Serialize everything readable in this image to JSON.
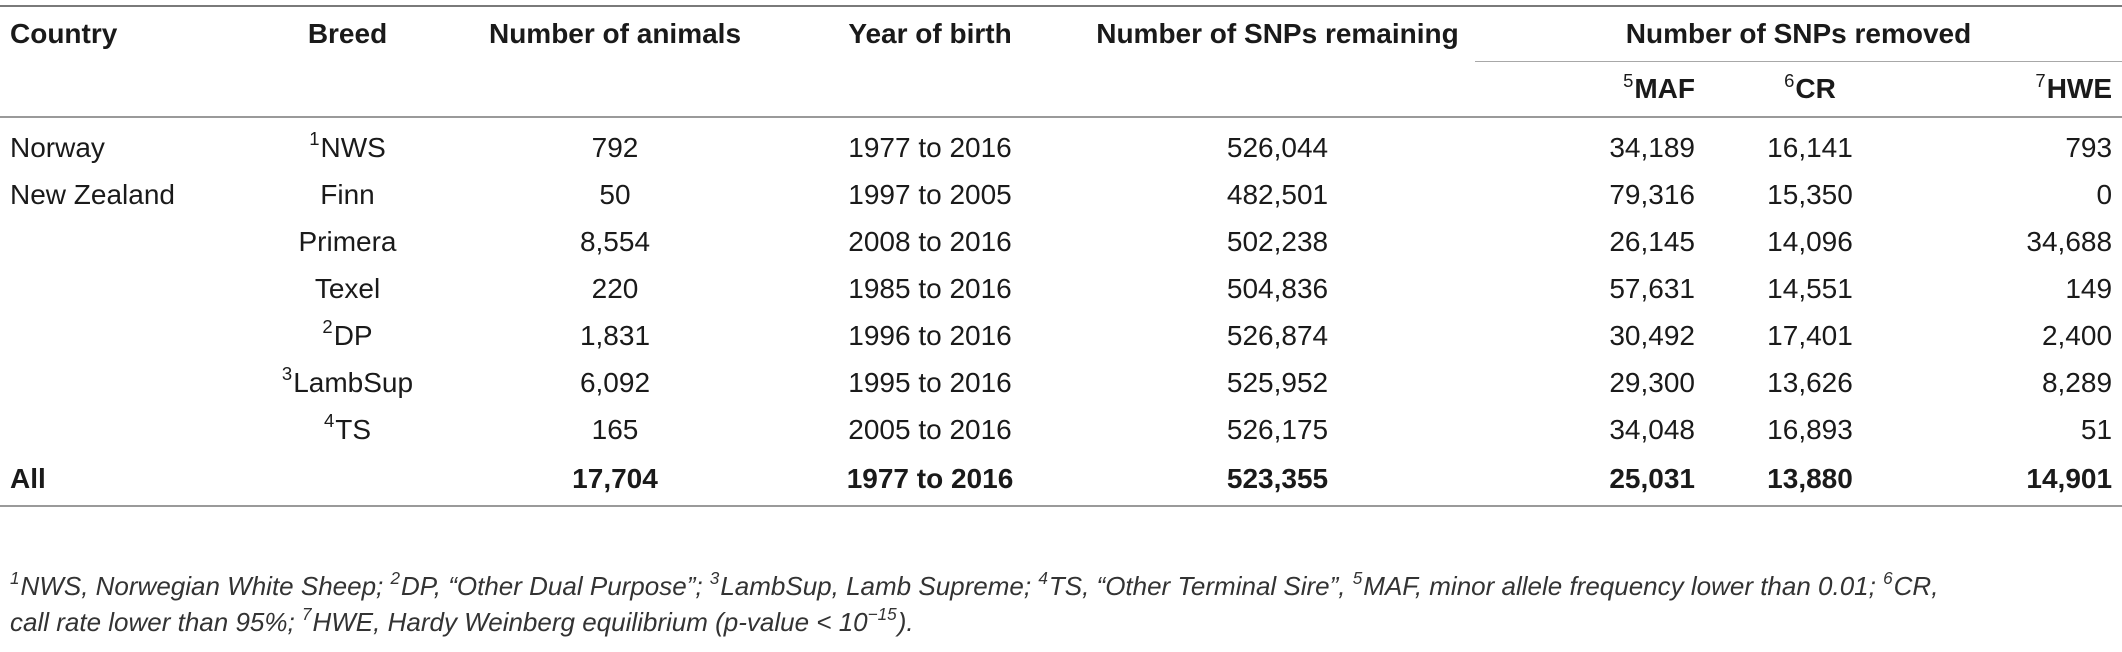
{
  "headers": {
    "country": "Country",
    "breed": "Breed",
    "animals": "Number of animals",
    "year": "Year of birth",
    "remaining": "Number of SNPs remaining",
    "removed": "Number of SNPs removed",
    "maf": {
      "sup": "5",
      "label": "MAF"
    },
    "cr": {
      "sup": "6",
      "label": "CR"
    },
    "hwe": {
      "sup": "7",
      "label": "HWE"
    }
  },
  "rows": [
    {
      "country": "Norway",
      "breed_sup": "1",
      "breed": "NWS",
      "animals": "792",
      "year": "1977 to 2016",
      "remaining": "526,044",
      "maf": "34,189",
      "cr": "16,141",
      "hwe": "793"
    },
    {
      "country": "New Zealand",
      "breed_sup": "",
      "breed": "Finn",
      "animals": "50",
      "year": "1997 to 2005",
      "remaining": "482,501",
      "maf": "79,316",
      "cr": "15,350",
      "hwe": "0"
    },
    {
      "country": "",
      "breed_sup": "",
      "breed": "Primera",
      "animals": "8,554",
      "year": "2008 to 2016",
      "remaining": "502,238",
      "maf": "26,145",
      "cr": "14,096",
      "hwe": "34,688"
    },
    {
      "country": "",
      "breed_sup": "",
      "breed": "Texel",
      "animals": "220",
      "year": "1985 to 2016",
      "remaining": "504,836",
      "maf": "57,631",
      "cr": "14,551",
      "hwe": "149"
    },
    {
      "country": "",
      "breed_sup": "2",
      "breed": "DP",
      "animals": "1,831",
      "year": "1996 to 2016",
      "remaining": "526,874",
      "maf": "30,492",
      "cr": "17,401",
      "hwe": "2,400"
    },
    {
      "country": "",
      "breed_sup": "3",
      "breed": "LambSup",
      "animals": "6,092",
      "year": "1995 to 2016",
      "remaining": "525,952",
      "maf": "29,300",
      "cr": "13,626",
      "hwe": "8,289"
    },
    {
      "country": "",
      "breed_sup": "4",
      "breed": "TS",
      "animals": "165",
      "year": "2005 to 2016",
      "remaining": "526,175",
      "maf": "34,048",
      "cr": "16,893",
      "hwe": "51"
    }
  ],
  "total": {
    "country": "All",
    "animals": "17,704",
    "year": "1977 to 2016",
    "remaining": "523,355",
    "maf": "25,031",
    "cr": "13,880",
    "hwe": "14,901"
  },
  "footnote": {
    "s1": "1",
    "t1": "NWS, Norwegian White Sheep; ",
    "s2": "2",
    "t2": "DP, “Other Dual Purpose”; ",
    "s3": "3",
    "t3": "LambSup, Lamb Supreme; ",
    "s4": "4",
    "t4": "TS, “Other Terminal Sire”, ",
    "s5": "5",
    "t5": "MAF, minor allele frequency lower than 0.01; ",
    "s6": "6",
    "t6": "CR,",
    "t6b": "call rate lower than 95%; ",
    "s7": "7",
    "t7": "HWE, Hardy Weinberg equilibrium (p-value < 10",
    "exp": "−15",
    "t7end": ")."
  }
}
